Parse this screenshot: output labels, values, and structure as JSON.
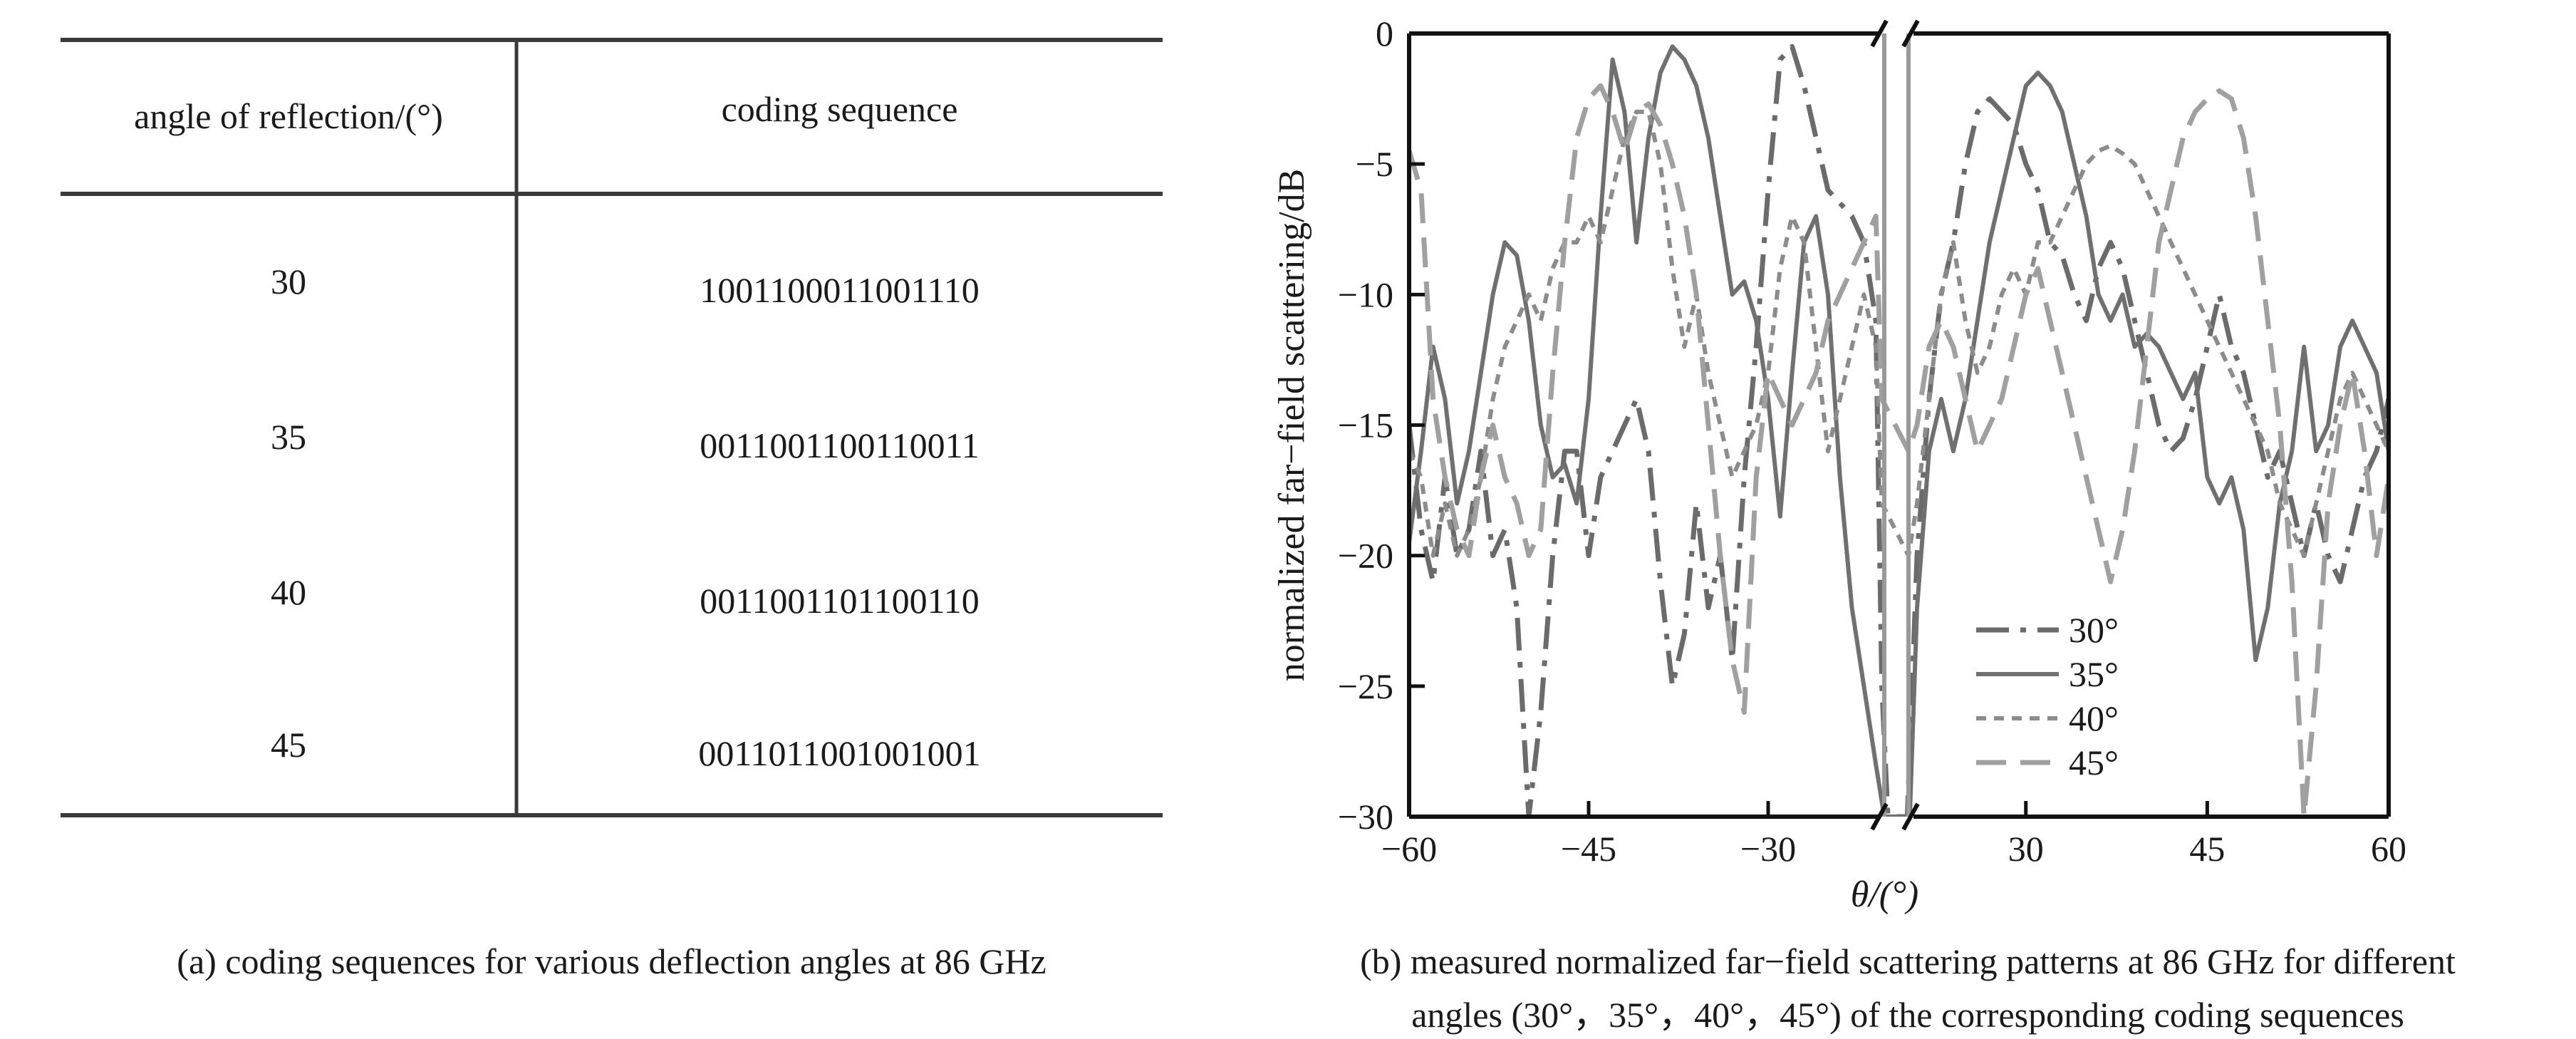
{
  "table": {
    "header": {
      "angle": "angle of reflection/(°)",
      "sequence": "coding sequence"
    },
    "rows": [
      {
        "angle": "30",
        "sequence": "1001100011001110"
      },
      {
        "angle": "35",
        "sequence": "0011001100110011"
      },
      {
        "angle": "40",
        "sequence": "0011001101100110"
      },
      {
        "angle": "45",
        "sequence": "0011011001001001"
      }
    ],
    "caption": "(a) coding sequences for various deflection angles at 86 GHz"
  },
  "figure_b": {
    "caption_line1": "(b) measured normalized far−field scattering patterns at 86 GHz for different",
    "caption_line2": "angles (30°，35°，40°，45°) of the corresponding coding sequences"
  },
  "chart_data": {
    "type": "line",
    "xlabel": "θ/(°)",
    "ylabel": "normalized far−field scattering/dB",
    "xlim": [
      -60,
      60
    ],
    "ylim": [
      -30,
      0
    ],
    "axis_break": [
      -20,
      20
    ],
    "x_ticks": [
      -60,
      -45,
      -30,
      30,
      45,
      60
    ],
    "x_tick_labels": [
      "−60",
      "−45",
      "−30",
      "30",
      "45",
      "60"
    ],
    "y_ticks": [
      0,
      -5,
      -10,
      -15,
      -20,
      -25,
      -30
    ],
    "y_tick_labels": [
      "0",
      "−5",
      "−10",
      "−15",
      "−20",
      "−25",
      "−30"
    ],
    "grid": false,
    "legend_position": "bottom-right",
    "series": [
      {
        "name": "30°",
        "style": "dash-dot",
        "color": "#6b6b6b",
        "x": [
          -60,
          -59,
          -58,
          -57,
          -56,
          -55,
          -54,
          -53,
          -52,
          -51,
          -50,
          -49,
          -48,
          -47,
          -46,
          -45,
          -44,
          -43,
          -42,
          -41,
          -40,
          -39,
          -38,
          -37,
          -36,
          -35,
          -34,
          -33,
          -32,
          -31,
          -30,
          -29,
          -28,
          -27,
          -26,
          -25,
          -24,
          -23,
          -22,
          -21,
          -20.5,
          -19.8,
          20.2,
          21,
          22,
          23,
          24,
          25,
          26,
          27,
          28,
          29,
          30,
          31,
          32,
          33,
          34,
          35,
          36,
          37,
          38,
          39,
          40,
          41,
          42,
          43,
          44,
          45,
          46,
          47,
          48,
          49,
          50,
          51,
          52,
          53,
          54,
          55,
          56,
          57,
          58,
          59,
          60
        ],
        "y": [
          -15,
          -19,
          -21,
          -17,
          -20,
          -19,
          -16,
          -20,
          -19,
          -22,
          -30,
          -26,
          -20,
          -16,
          -16,
          -20,
          -17,
          -16,
          -15,
          -14,
          -16,
          -21,
          -25,
          -23,
          -18,
          -22,
          -20,
          -24,
          -17,
          -12,
          -6,
          -1,
          -0.5,
          -2,
          -4,
          -6,
          -6.5,
          -7,
          -8,
          -11,
          -25,
          -30,
          -30,
          -20,
          -14,
          -10,
          -8,
          -5,
          -3,
          -2.5,
          -3,
          -3.5,
          -5,
          -6,
          -8,
          -8.5,
          -10,
          -11,
          -9,
          -8,
          -9,
          -11,
          -13,
          -15,
          -16,
          -15.5,
          -14,
          -12,
          -10,
          -12,
          -13,
          -15,
          -17,
          -16,
          -18,
          -20,
          -18,
          -20,
          -21,
          -19,
          -17,
          -16,
          -14
        ]
      },
      {
        "name": "35°",
        "style": "solid",
        "color": "#707070",
        "x": [
          -60,
          -59,
          -58,
          -57,
          -56,
          -55,
          -54,
          -53,
          -52,
          -51,
          -50,
          -49,
          -48,
          -47,
          -46,
          -45,
          -44,
          -43,
          -42,
          -41,
          -40,
          -39,
          -38,
          -37,
          -36,
          -35,
          -34,
          -33,
          -32,
          -31,
          -30,
          -29,
          -28,
          -27,
          -26,
          -25,
          -24,
          -23,
          -22,
          -21,
          -20.3,
          20.4,
          21,
          22,
          23,
          24,
          25,
          26,
          27,
          28,
          29,
          30,
          31,
          32,
          33,
          34,
          35,
          36,
          37,
          38,
          39,
          40,
          41,
          42,
          43,
          44,
          45,
          46,
          47,
          48,
          49,
          50,
          51,
          52,
          53,
          54,
          55,
          56,
          57,
          58,
          59,
          60
        ],
        "y": [
          -19.5,
          -16,
          -12,
          -14,
          -18,
          -16,
          -13,
          -10,
          -8,
          -8.5,
          -11,
          -15,
          -17,
          -16.5,
          -18,
          -14,
          -7,
          -1,
          -3,
          -8,
          -4,
          -1.5,
          -0.5,
          -1,
          -2,
          -4,
          -7,
          -10,
          -9.5,
          -11,
          -14,
          -18.5,
          -13,
          -8,
          -7,
          -10,
          -17,
          -22,
          -25,
          -28,
          -30,
          -30,
          -22,
          -16,
          -14,
          -16,
          -14,
          -11,
          -8,
          -6,
          -4,
          -2,
          -1.5,
          -2,
          -3,
          -5,
          -7,
          -10,
          -11,
          -10,
          -12,
          -11.5,
          -12,
          -13,
          -14,
          -13,
          -17,
          -18,
          -17,
          -19,
          -24,
          -22,
          -18,
          -16,
          -12,
          -16,
          -15,
          -12,
          -11,
          -12,
          -13,
          -16
        ]
      },
      {
        "name": "40°",
        "style": "dotted",
        "color": "#8c8c8c",
        "x": [
          -60,
          -59,
          -58,
          -57,
          -56,
          -55,
          -54,
          -53,
          -52,
          -51,
          -50,
          -49,
          -48,
          -47,
          -46,
          -45,
          -44,
          -43,
          -42,
          -41,
          -40,
          -39,
          -38,
          -37,
          -36,
          -35,
          -34,
          -33,
          -32,
          -31,
          -30,
          -29,
          -28,
          -27,
          -26,
          -25,
          -24,
          -23,
          -22,
          -21,
          -20.5,
          20.3,
          21,
          22,
          23,
          24,
          25,
          26,
          27,
          28,
          29,
          30,
          31,
          32,
          33,
          34,
          35,
          36,
          37,
          38,
          39,
          40,
          41,
          42,
          43,
          44,
          45,
          46,
          47,
          48,
          49,
          50,
          51,
          52,
          53,
          54,
          55,
          56,
          57,
          58,
          59,
          60
        ],
        "y": [
          -16,
          -17,
          -20,
          -18,
          -20,
          -19,
          -17,
          -14,
          -12,
          -11,
          -10,
          -11,
          -9,
          -8,
          -8,
          -7,
          -8,
          -6,
          -4,
          -3,
          -3,
          -5,
          -9,
          -12,
          -10,
          -13,
          -15,
          -17,
          -16,
          -15,
          -13,
          -9,
          -7,
          -8,
          -12,
          -16,
          -14,
          -12,
          -10,
          -12,
          -18,
          -20,
          -18,
          -14,
          -10,
          -8,
          -11,
          -13,
          -12,
          -10,
          -9,
          -10,
          -8,
          -8,
          -7,
          -6,
          -5,
          -4.5,
          -4.3,
          -4.6,
          -5,
          -6,
          -7,
          -8,
          -9,
          -10,
          -11,
          -12,
          -13,
          -14,
          -15,
          -16,
          -18,
          -19,
          -20,
          -18,
          -16,
          -14,
          -13,
          -14,
          -15,
          -16
        ]
      },
      {
        "name": "45°",
        "style": "dashed",
        "color": "#a0a0a0",
        "x": [
          -60,
          -59,
          -58,
          -57,
          -56,
          -55,
          -54,
          -53,
          -52,
          -51,
          -50,
          -49,
          -48,
          -47,
          -46,
          -45,
          -44,
          -43,
          -42,
          -41,
          -40,
          -39,
          -38,
          -37,
          -36,
          -35,
          -34,
          -33,
          -32,
          -31,
          -30,
          -29,
          -28,
          -27,
          -26,
          -25,
          -24,
          -23,
          -22,
          -21,
          -20.5,
          20.3,
          21,
          22,
          23,
          24,
          25,
          26,
          27,
          28,
          29,
          30,
          31,
          32,
          33,
          34,
          35,
          36,
          37,
          38,
          39,
          40,
          41,
          42,
          43,
          44,
          45,
          46,
          47,
          48,
          49,
          50,
          51,
          52,
          53,
          54,
          55,
          56,
          57,
          58,
          59,
          60
        ],
        "y": [
          -4.5,
          -6,
          -14,
          -17,
          -19,
          -20,
          -17,
          -15,
          -17,
          -18,
          -20,
          -19,
          -13,
          -8,
          -4,
          -2.5,
          -2,
          -3,
          -4.5,
          -3,
          -2.7,
          -3.5,
          -5,
          -7,
          -10,
          -15,
          -20,
          -24,
          -26,
          -17,
          -13,
          -14,
          -15,
          -14,
          -13,
          -11,
          -10,
          -9,
          -8,
          -7,
          -14,
          -16,
          -15,
          -12,
          -11,
          -12,
          -14,
          -16,
          -15,
          -14,
          -12,
          -10,
          -9,
          -11,
          -13,
          -15,
          -17,
          -19,
          -21,
          -19,
          -16,
          -12,
          -8,
          -6,
          -4,
          -3,
          -2.5,
          -2.2,
          -2.5,
          -4,
          -7,
          -11,
          -15,
          -21,
          -30,
          -25,
          -18,
          -15,
          -13,
          -16,
          -20,
          -17
        ]
      }
    ]
  }
}
